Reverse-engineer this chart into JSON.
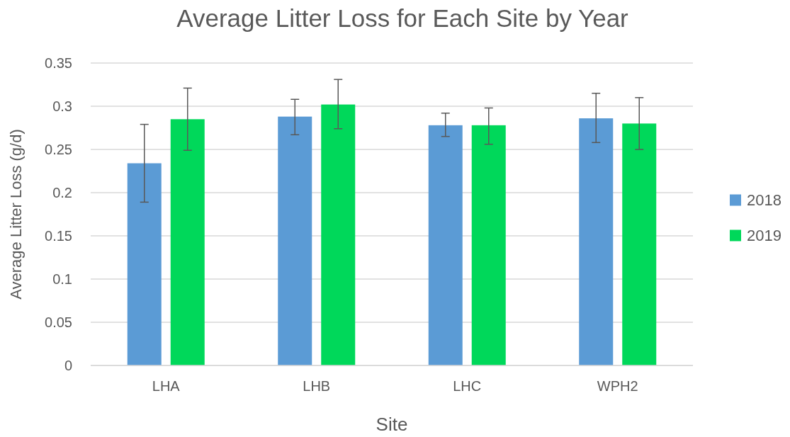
{
  "chart_data": {
    "type": "bar",
    "title": "Average Litter Loss for Each Site by Year",
    "xlabel": "Site",
    "ylabel": "Average Litter Loss (g/d)",
    "categories": [
      "LHA",
      "LHB",
      "LHC",
      "WPH2"
    ],
    "series": [
      {
        "name": "2018",
        "color": "#5b9bd5",
        "values": [
          0.234,
          0.288,
          0.278,
          0.286
        ],
        "errors": [
          [
            0.189,
            0.279
          ],
          [
            0.267,
            0.308
          ],
          [
            0.265,
            0.292
          ],
          [
            0.258,
            0.315
          ]
        ]
      },
      {
        "name": "2019",
        "color": "#00d85a",
        "values": [
          0.285,
          0.302,
          0.278,
          0.28
        ],
        "errors": [
          [
            0.249,
            0.321
          ],
          [
            0.274,
            0.331
          ],
          [
            0.256,
            0.298
          ],
          [
            0.25,
            0.31
          ]
        ]
      }
    ],
    "ylim": [
      0,
      0.35
    ],
    "yticks": [
      0,
      0.05,
      0.1,
      0.15,
      0.2,
      0.25,
      0.3,
      0.35
    ],
    "grid": "y",
    "legend": "right"
  }
}
